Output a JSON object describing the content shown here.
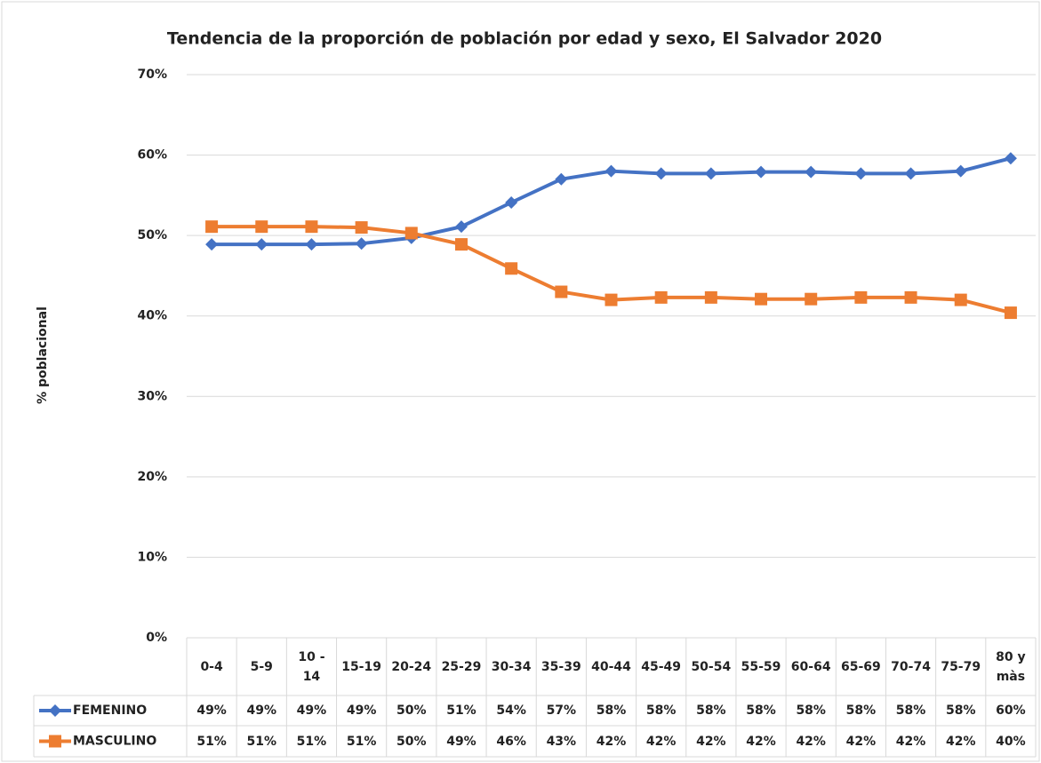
{
  "chart_data": {
    "type": "line",
    "title": "Tendencia de la proporción de población por edad y sexo, El Salvador 2020",
    "y_label": "% poblacional",
    "categories": [
      "0-4",
      "5-9",
      "10 - 14",
      "15-19",
      "20-24",
      "25-29",
      "30-34",
      "35-39",
      "40-44",
      "45-49",
      "50-54",
      "55-59",
      "60-64",
      "65-69",
      "70-74",
      "75-79",
      "80 y màs"
    ],
    "series": [
      {
        "name": "FEMENINO",
        "color": "#4472c4",
        "marker": "diamond",
        "values": [
          48.9,
          48.9,
          48.9,
          49,
          49.7,
          51.1,
          54.1,
          57,
          58,
          57.7,
          57.7,
          57.9,
          57.9,
          57.7,
          57.7,
          58,
          59.6
        ],
        "value_labels": [
          "49%",
          "49%",
          "49%",
          "49%",
          "50%",
          "51%",
          "54%",
          "57%",
          "58%",
          "58%",
          "58%",
          "58%",
          "58%",
          "58%",
          "58%",
          "58%",
          "60%"
        ]
      },
      {
        "name": "MASCULINO",
        "color": "#ed7d31",
        "marker": "square",
        "values": [
          51.1,
          51.1,
          51.1,
          51,
          50.3,
          48.9,
          45.9,
          43,
          42,
          42.3,
          42.3,
          42.1,
          42.1,
          42.3,
          42.3,
          42,
          40.4
        ],
        "value_labels": [
          "51%",
          "51%",
          "51%",
          "51%",
          "50%",
          "49%",
          "46%",
          "43%",
          "42%",
          "42%",
          "42%",
          "42%",
          "42%",
          "42%",
          "42%",
          "42%",
          "40%"
        ]
      }
    ],
    "ylim": [
      0,
      70
    ],
    "yticks": [
      {
        "value": 0,
        "label": "0%"
      },
      {
        "value": 10,
        "label": "10%"
      },
      {
        "value": 20,
        "label": "20%"
      },
      {
        "value": 30,
        "label": "30%"
      },
      {
        "value": 40,
        "label": "40%"
      },
      {
        "value": 50,
        "label": "50%"
      },
      {
        "value": 60,
        "label": "60%"
      },
      {
        "value": 70,
        "label": "70%"
      }
    ],
    "grid": true,
    "data_table": true
  }
}
